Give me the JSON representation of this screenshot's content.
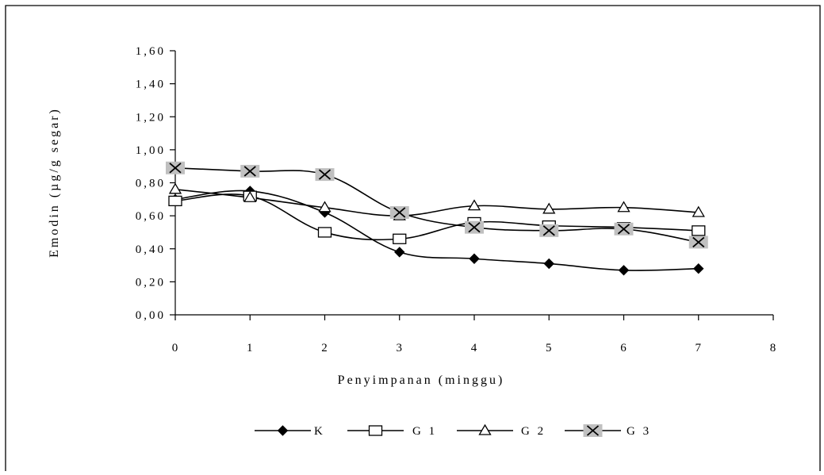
{
  "chart_data": {
    "type": "line",
    "xlabel": "Penyimpanan (minggu)",
    "ylabel": "Emodin (µg/g segar)",
    "xlim": [
      0,
      8
    ],
    "ylim": [
      0,
      1.6
    ],
    "x_ticks": [
      "0",
      "1",
      "2",
      "3",
      "4",
      "5",
      "6",
      "7",
      "8"
    ],
    "y_ticks": [
      "0,00",
      "0,20",
      "0,40",
      "0,60",
      "0,80",
      "1,00",
      "1,20",
      "1,40",
      "1,60"
    ],
    "y_tick_values": [
      0,
      0.2,
      0.4,
      0.6,
      0.8,
      1.0,
      1.2,
      1.4,
      1.6
    ],
    "grid": false,
    "legend_position": "bottom",
    "x": [
      0,
      1,
      2,
      3,
      4,
      5,
      6,
      7
    ],
    "series": [
      {
        "name": "K",
        "marker": "diamond",
        "values": [
          0.7,
          0.75,
          0.62,
          0.38,
          0.34,
          0.31,
          0.27,
          0.28
        ]
      },
      {
        "name": "G1",
        "marker": "square",
        "values": [
          0.69,
          0.72,
          0.5,
          0.46,
          0.56,
          0.54,
          0.53,
          0.51
        ]
      },
      {
        "name": "G2",
        "marker": "triangle",
        "values": [
          0.76,
          0.71,
          0.65,
          0.6,
          0.66,
          0.64,
          0.65,
          0.62
        ]
      },
      {
        "name": "G3",
        "marker": "cross",
        "values": [
          0.89,
          0.87,
          0.85,
          0.62,
          0.53,
          0.51,
          0.52,
          0.44
        ]
      }
    ],
    "legend": [
      "K",
      "G 1",
      "G 2",
      "G 3"
    ],
    "colors": {
      "line": "#000000",
      "cross_bg": "#c0c0c0"
    }
  }
}
